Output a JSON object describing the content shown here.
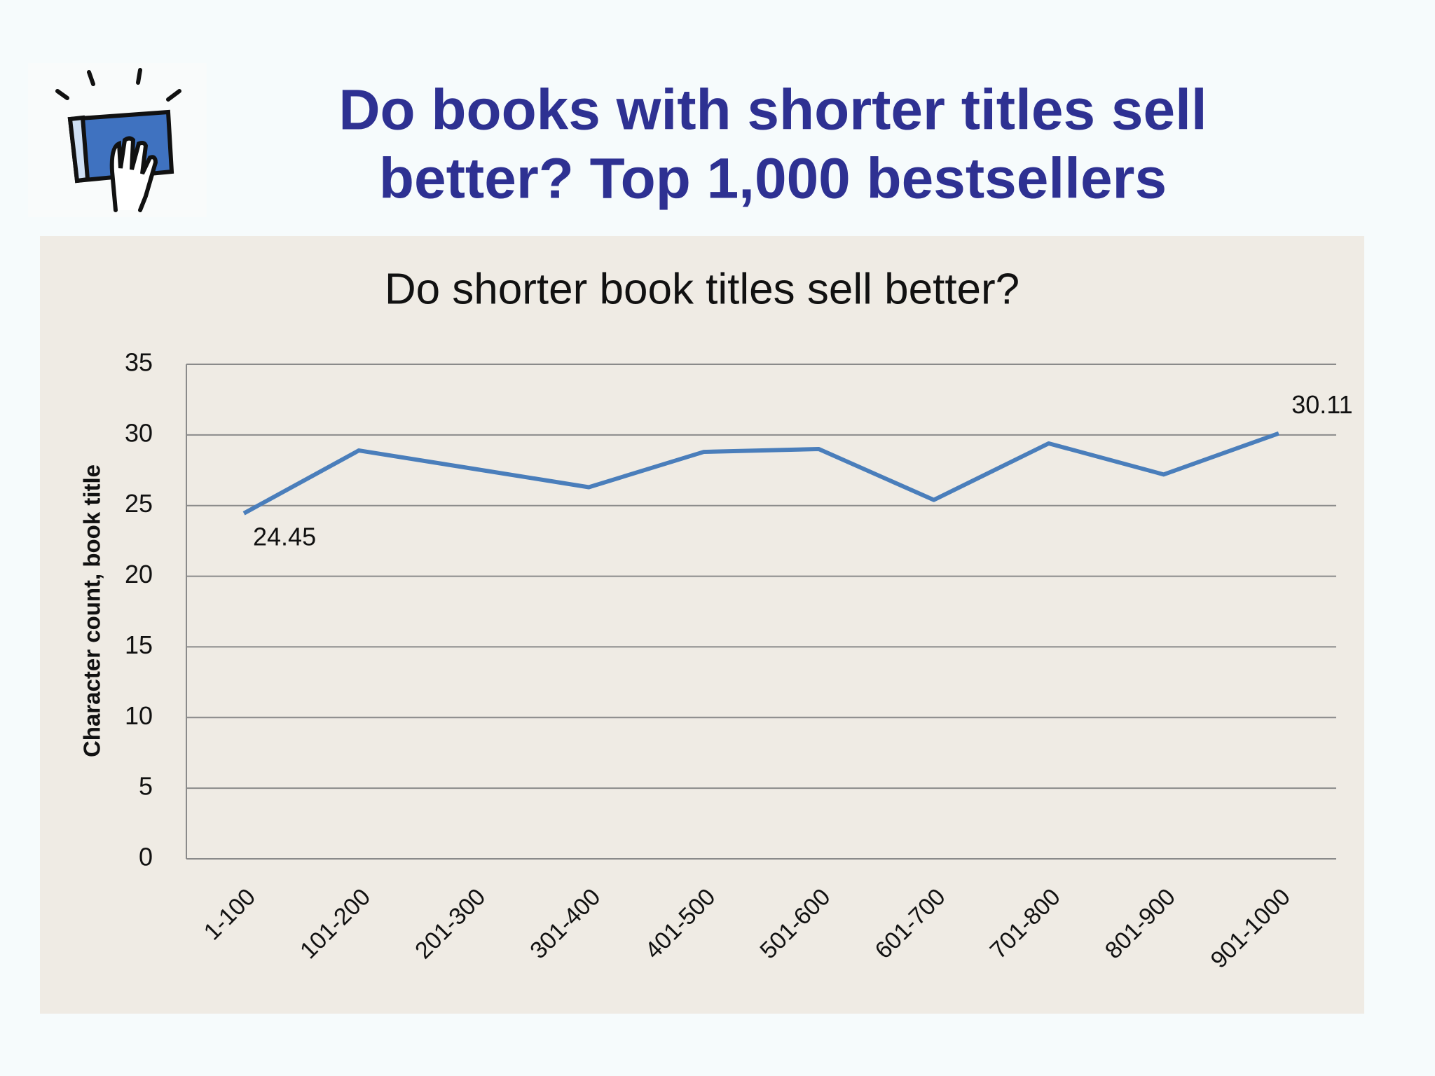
{
  "heading": [
    "Do books with shorter titles sell",
    "better? Top 1,000 bestsellers"
  ],
  "chart_data": {
    "type": "line",
    "title": "Do shorter book titles sell better?",
    "y_label": "Character count, book title",
    "categories": [
      "1-100",
      "101-200",
      "201-300",
      "301-400",
      "401-500",
      "501-600",
      "601-700",
      "701-800",
      "801-900",
      "901-1000"
    ],
    "series": [
      {
        "color": "#4a7ebb",
        "values": [
          24.45,
          28.9,
          27.6,
          26.3,
          28.8,
          29.0,
          25.4,
          29.4,
          27.2,
          30.11
        ],
        "value_labels": [
          "24.45",
          null,
          null,
          null,
          null,
          null,
          null,
          null,
          null,
          "30.11"
        ]
      }
    ],
    "ylim": [
      0,
      35
    ],
    "yticks": [
      0,
      5,
      10,
      15,
      20,
      25,
      30,
      35
    ],
    "grid": true
  }
}
